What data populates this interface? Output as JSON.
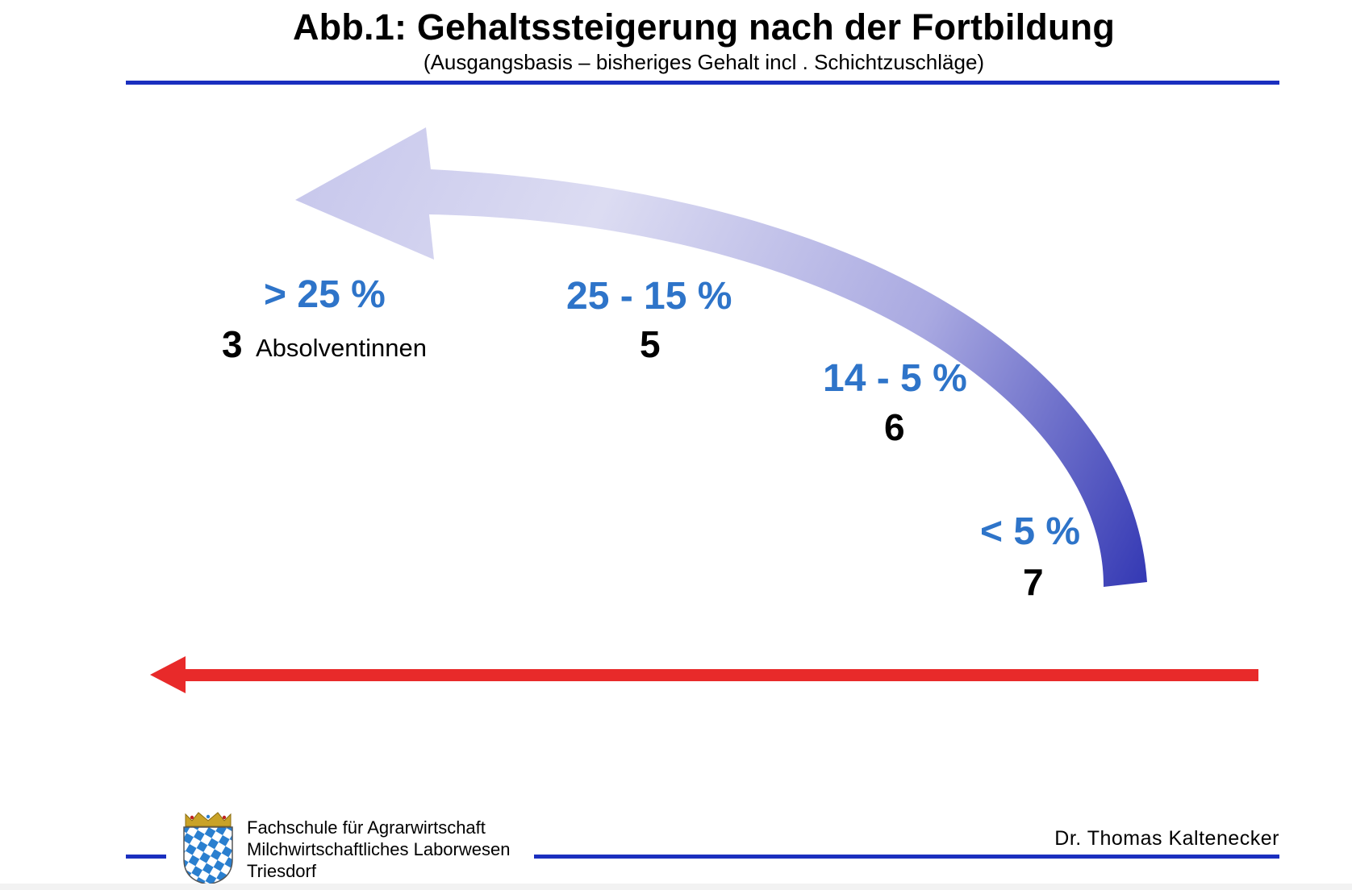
{
  "title": "Abb.1: Gehaltssteigerung nach der Fortbildung",
  "subtitle": "(Ausgangsbasis  – bisheriges Gehalt incl . Schichtzuschläge)",
  "categories": [
    {
      "range": "> 25 %",
      "count": "3",
      "count_label": "Absolventinnen"
    },
    {
      "range": "25 - 15 %",
      "count": "5"
    },
    {
      "range": "14 - 5 %",
      "count": "6"
    },
    {
      "range": "< 5 %",
      "count": "7"
    }
  ],
  "footer": {
    "institution": [
      "Fachschule für Agrarwirtschaft",
      "Milchwirtschaftliches Laborwesen",
      "Triesdorf"
    ],
    "author": "Dr. Thomas Kaltenecker"
  },
  "colors": {
    "rule": "#1a2fbf",
    "percent_text": "#2e74c9",
    "curved_arrow_light": "#dcdcf2",
    "curved_arrow_dark": "#2a2fb0",
    "straight_arrow": "#e82a2a"
  },
  "icons": [
    "curved-arrow-icon",
    "straight-arrow-icon",
    "bavarian-crest-icon"
  ]
}
